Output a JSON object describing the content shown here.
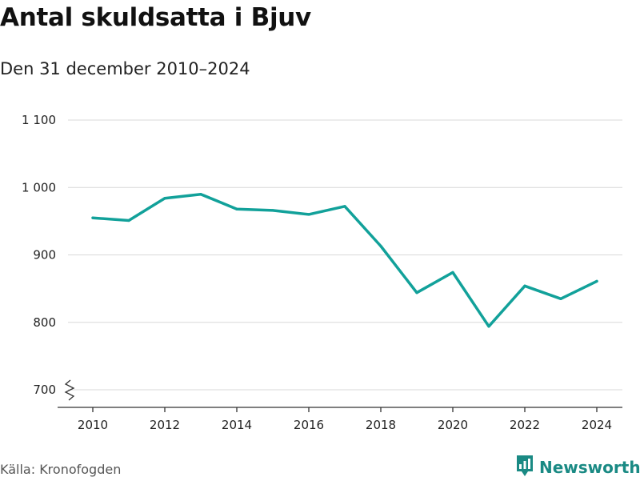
{
  "header": {
    "title": "Antal skuldsatta i Bjuv",
    "subtitle": "Den 31 december 2010–2024"
  },
  "footer": {
    "source": "Källa: Kronofogden",
    "brand": "Newsworthy"
  },
  "colors": {
    "line": "#12a19a",
    "brand": "#1a8a84",
    "grid": "#d9d9d9"
  },
  "chart_data": {
    "type": "line",
    "title": "Antal skuldsatta i Bjuv",
    "subtitle": "Den 31 december 2010–2024",
    "xlabel": "",
    "ylabel": "",
    "x": [
      2010,
      2011,
      2012,
      2013,
      2014,
      2015,
      2016,
      2017,
      2018,
      2019,
      2020,
      2021,
      2022,
      2023,
      2024
    ],
    "series": [
      {
        "values": [
          955,
          951,
          984,
          990,
          968,
          966,
          960,
          972,
          913,
          844,
          874,
          794,
          854,
          835,
          861
        ]
      }
    ],
    "ylim": [
      700,
      1100
    ],
    "yticks": [
      700,
      800,
      900,
      1000,
      1100
    ],
    "ytick_labels": [
      "700",
      "800",
      "900",
      "1 000",
      "1 100"
    ],
    "xticks": [
      2010,
      2012,
      2014,
      2016,
      2018,
      2020,
      2022,
      2024
    ],
    "xtick_labels": [
      "2010",
      "2012",
      "2014",
      "2016",
      "2018",
      "2020",
      "2022",
      "2024"
    ],
    "grid": true,
    "axis_break": true,
    "legend": "none"
  }
}
